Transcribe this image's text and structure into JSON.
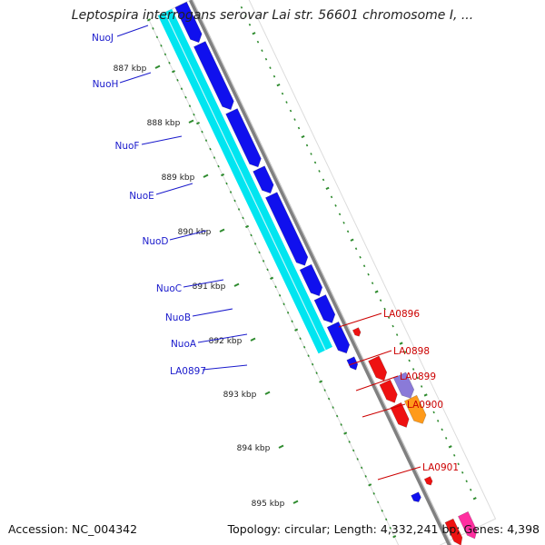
{
  "title": "Leptospira interrogans serovar Lai str. 56601 chromosome I, ...",
  "footer": {
    "accession": "Accession: NC_004342",
    "summary": "Topology: circular; Length: 4,332,241 bp; Genes: 4,398"
  },
  "colors": {
    "left_gene_label": "#1a1acc",
    "right_gene_label": "#cc0000",
    "kbp_tick": "#2e8b2e",
    "backbone": "#808080",
    "cyan_track": "#00e5f0",
    "blue_gene": "#1010ee",
    "red_gene": "#ee1111",
    "purple_gene": "#8a7ad8",
    "orange_gene": "#ff9a1a",
    "pink_gene": "#ff2fa0"
  },
  "kbp_ticks": [
    "887 kbp",
    "888 kbp",
    "889 kbp",
    "890 kbp",
    "891 kbp",
    "892 kbp",
    "893 kbp",
    "894 kbp",
    "895 kbp"
  ],
  "left_genes": [
    "NuoJ",
    "NuoH",
    "NuoF",
    "NuoE",
    "NuoD",
    "NuoC",
    "NuoB",
    "NuoA",
    "LA0897"
  ],
  "right_genes": [
    "LA0896",
    "LA0898",
    "LA0899",
    "LA0900",
    "LA0901"
  ]
}
